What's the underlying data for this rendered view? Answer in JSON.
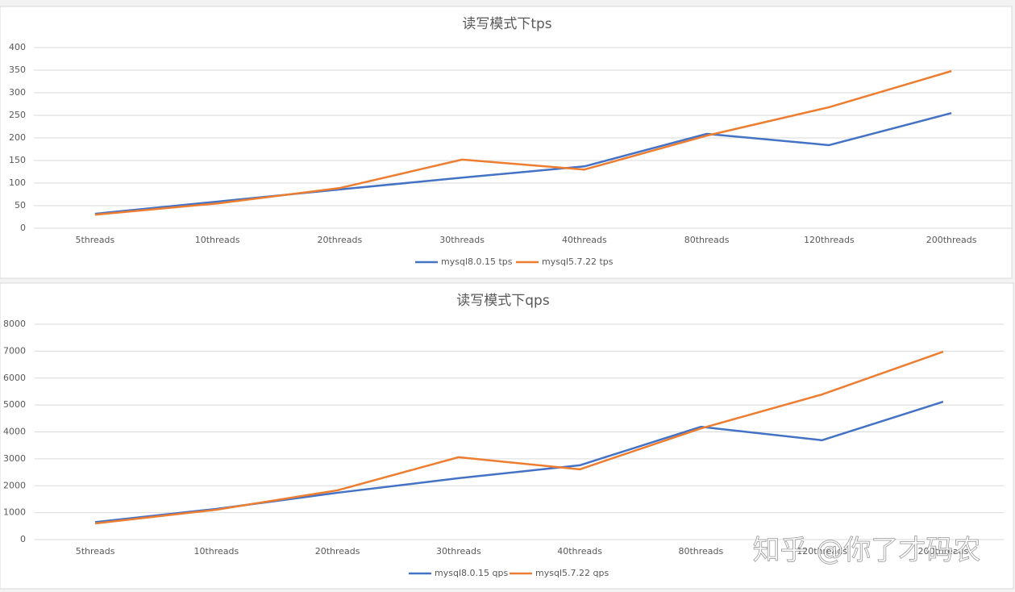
{
  "chart_data": [
    {
      "type": "line",
      "title": "读写模式下tps",
      "categories": [
        "5threads",
        "10threads",
        "20threads",
        "30threads",
        "40threads",
        "80threads",
        "120threads",
        "200threads"
      ],
      "series": [
        {
          "name": "mysql8.0.15 tps",
          "color": "#4472c4",
          "values": [
            32,
            59,
            86,
            112,
            137,
            209,
            184,
            255
          ]
        },
        {
          "name": "mysql5.7.22 tps",
          "color": "#ed7d31",
          "values": [
            30,
            55,
            89,
            152,
            130,
            205,
            268,
            348
          ]
        }
      ],
      "ylim": [
        0,
        400
      ],
      "yticks": [
        0,
        50,
        100,
        150,
        200,
        250,
        300,
        350,
        400
      ],
      "grid": true,
      "legend": "bottom"
    },
    {
      "type": "line",
      "title": "读写模式下qps",
      "categories": [
        "5threads",
        "10threads",
        "20threads",
        "30threads",
        "40threads",
        "80threads",
        "120threads",
        "200threads"
      ],
      "series": [
        {
          "name": "mysql8.0.15 qps",
          "color": "#4472c4",
          "values": [
            650,
            1140,
            1740,
            2280,
            2760,
            4190,
            3690,
            5120
          ]
        },
        {
          "name": "mysql5.7.22 qps",
          "color": "#ed7d31",
          "values": [
            600,
            1110,
            1830,
            3060,
            2610,
            4130,
            5390,
            6980
          ]
        }
      ],
      "ylim": [
        0,
        8000
      ],
      "yticks": [
        0,
        1000,
        2000,
        3000,
        4000,
        5000,
        6000,
        7000,
        8000
      ],
      "grid": true,
      "legend": "bottom"
    }
  ],
  "watermark": "知乎 @你了才码农"
}
